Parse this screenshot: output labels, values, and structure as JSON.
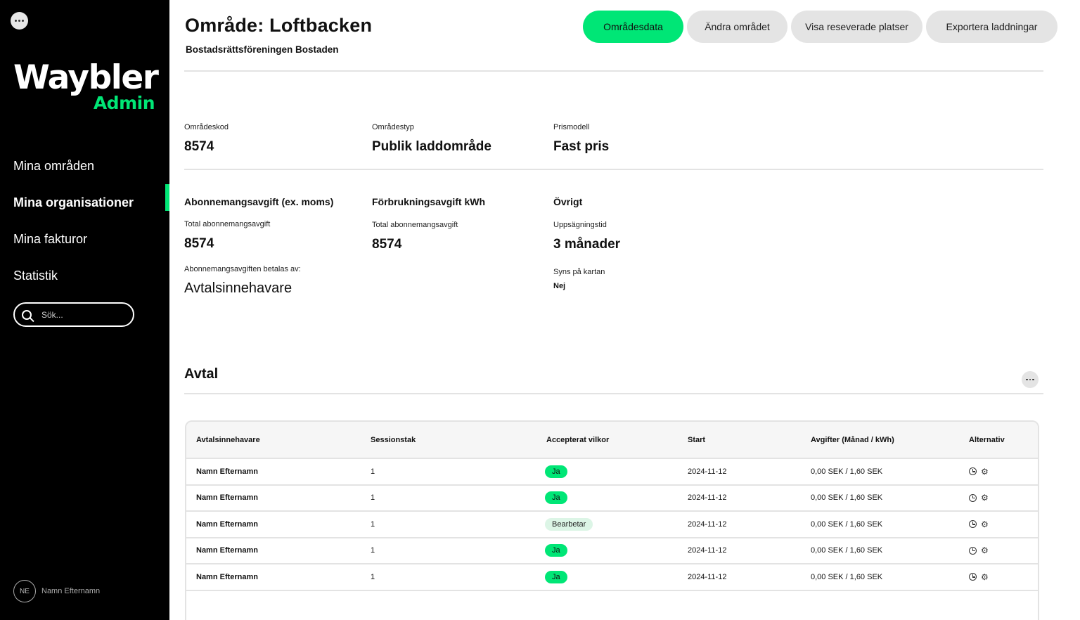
{
  "sidebar": {
    "logo_main": "Waybler",
    "logo_sub": "Admin",
    "nav": [
      {
        "label": "Mina områden"
      },
      {
        "label": "Mina organisationer"
      },
      {
        "label": "Mina fakturor"
      },
      {
        "label": "Statistik"
      }
    ],
    "active_index": 1,
    "search_placeholder": "Sök...",
    "user": {
      "initials": "NE",
      "name": "Namn Efternamn"
    }
  },
  "header": {
    "title": "Område: Loftbacken",
    "subtitle": "Bostadsrättsföreningen Bostaden",
    "actions": [
      {
        "label": "Områdesdata",
        "primary": true
      },
      {
        "label": "Ändra området"
      },
      {
        "label": "Visa reseverade platser"
      },
      {
        "label": "Exportera laddningar"
      }
    ]
  },
  "info": {
    "area_code_label": "Områdeskod",
    "area_code": "8574",
    "area_type_label": "Områdestyp",
    "area_type": "Publik laddområde",
    "price_model_label": "Prismodell",
    "price_model": "Fast pris"
  },
  "fees": {
    "subscription_head": "Abonnemangsavgift (ex. moms)",
    "subscription_total_label": "Total abonnemangsavgift",
    "subscription_total": "8574",
    "paid_by_label": "Abonnemangsavgiften betalas av:",
    "paid_by": "Avtalsinnehavare",
    "consumption_head": "Förbrukningsavgift kWh",
    "consumption_total_label": "Total abonnemangsavgift",
    "consumption_total": "8574",
    "other_head": "Övrigt",
    "notice_label": "Uppsägningstid",
    "notice_value": "3 månader",
    "map_label": "Syns på kartan",
    "map_value": "Nej"
  },
  "agreements": {
    "title": "Avtal",
    "columns": [
      "Avtalsinnehavare",
      "Sessionstak",
      "Accepterat vilkor",
      "Start",
      "Avgifter (Månad / kWh)",
      "Alternativ"
    ],
    "rows": [
      {
        "holder": "Namn Efternamn",
        "cap": "1",
        "accepted": "Ja",
        "status": "ok",
        "start": "2024-11-12",
        "fees": "0,00 SEK / 1,60 SEK"
      },
      {
        "holder": "Namn Efternamn",
        "cap": "1",
        "accepted": "Ja",
        "status": "ok",
        "start": "2024-11-12",
        "fees": "0,00 SEK / 1,60 SEK"
      },
      {
        "holder": "Namn Efternamn",
        "cap": "1",
        "accepted": "Bearbetar",
        "status": "pending",
        "start": "2024-11-12",
        "fees": "0,00 SEK / 1,60 SEK"
      },
      {
        "holder": "Namn Efternamn",
        "cap": "1",
        "accepted": "Ja",
        "status": "ok",
        "start": "2024-11-12",
        "fees": "0,00 SEK / 1,60 SEK"
      },
      {
        "holder": "Namn Efternamn",
        "cap": "1",
        "accepted": "Ja",
        "status": "ok",
        "start": "2024-11-12",
        "fees": "0,00 SEK / 1,60 SEK"
      }
    ]
  },
  "colors": {
    "accent": "#00e676",
    "sidebar_bg": "#000000"
  }
}
